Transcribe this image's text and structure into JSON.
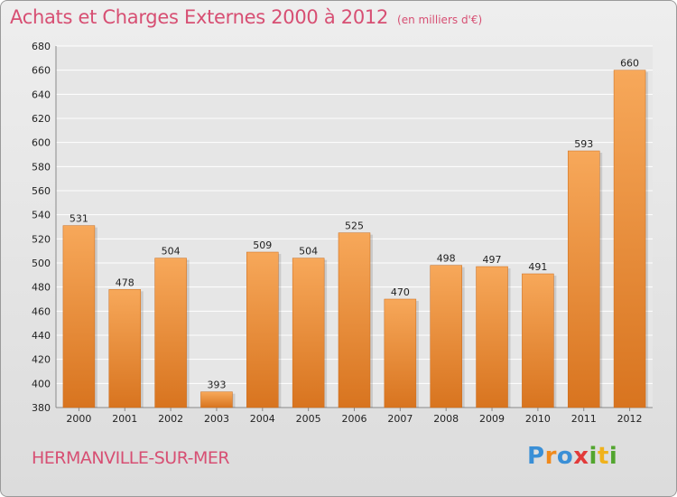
{
  "header": {
    "title": "Achats et Charges Externes 2000 à 2012",
    "unit": "(en milliers d'€)"
  },
  "footer": {
    "commune": "HERMANVILLE-SUR-MER",
    "logo_letters": [
      "P",
      "r",
      "o",
      "x",
      "i",
      "t",
      "i"
    ]
  },
  "colors": {
    "title": "#d74f73",
    "bar_light": "#f7a85a",
    "bar_dark": "#d8741f",
    "logo": [
      "#3a8fd6",
      "#f08a1c",
      "#3a8fd6",
      "#e23a3a",
      "#52a52e",
      "#f0b21c",
      "#52a52e"
    ]
  },
  "chart_data": {
    "type": "bar",
    "title": "Achats et Charges Externes 2000 à 2012",
    "categories": [
      "2000",
      "2001",
      "2002",
      "2003",
      "2004",
      "2005",
      "2006",
      "2007",
      "2008",
      "2009",
      "2010",
      "2011",
      "2012"
    ],
    "values": [
      531,
      478,
      504,
      393,
      509,
      504,
      525,
      470,
      498,
      497,
      491,
      593,
      660
    ],
    "ylim": [
      380,
      680
    ],
    "yticks": [
      380,
      400,
      420,
      440,
      460,
      480,
      500,
      520,
      540,
      560,
      580,
      600,
      620,
      640,
      660,
      680
    ],
    "grid": true,
    "xlabel": "",
    "ylabel": ""
  }
}
